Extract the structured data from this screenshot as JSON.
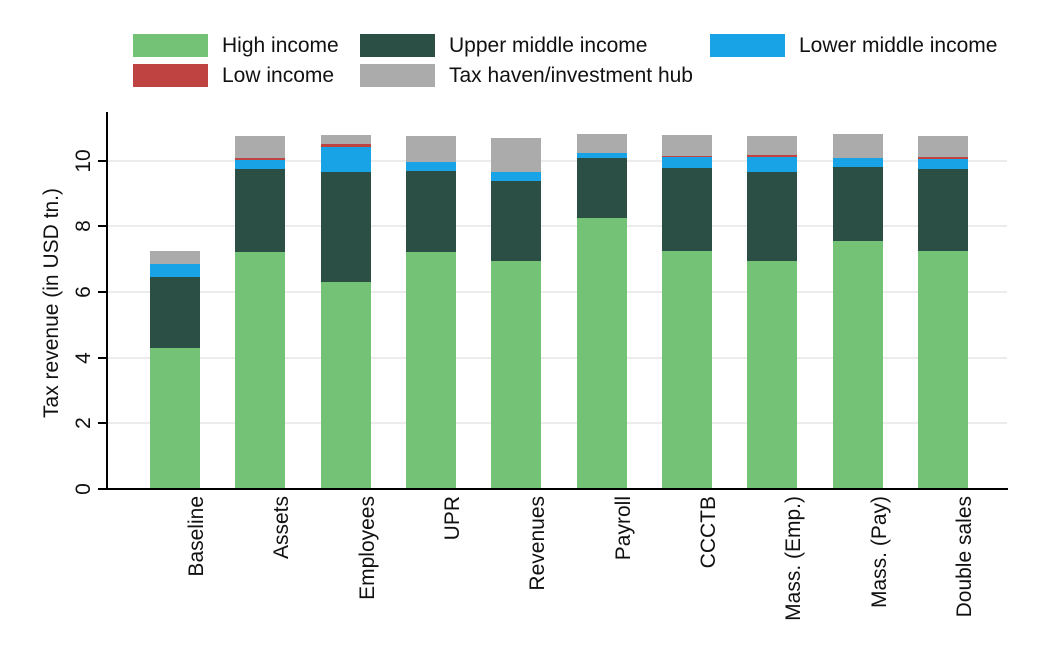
{
  "chart_data": {
    "type": "bar",
    "stacked": true,
    "title": "",
    "xlabel": "",
    "ylabel": "Tax revenue (in USD tn.)",
    "ylim": [
      0,
      11.3
    ],
    "yticks": [
      0,
      2,
      4,
      6,
      8,
      10
    ],
    "grid": "horizontal gridlines at 2,4,6,8,10",
    "legend_position": "top, two rows",
    "categories": [
      "Baseline",
      "Assets",
      "Employees",
      "UPR",
      "Revenues",
      "Payroll",
      "CCCTB",
      "Mass. (Emp.)",
      "Mass. (Pay)",
      "Double sales"
    ],
    "series": [
      {
        "name": "High income",
        "color": "#74C276",
        "values": [
          4.28,
          7.21,
          6.31,
          7.22,
          6.94,
          8.26,
          7.25,
          6.94,
          7.55,
          7.25
        ]
      },
      {
        "name": "Upper middle income",
        "color": "#2C4F45",
        "values": [
          2.18,
          2.52,
          3.33,
          2.46,
          2.44,
          1.83,
          2.51,
          2.72,
          2.25,
          2.48
        ]
      },
      {
        "name": "Lower middle income",
        "color": "#17A3E6",
        "values": [
          0.38,
          0.29,
          0.76,
          0.28,
          0.26,
          0.13,
          0.34,
          0.45,
          0.29,
          0.33
        ]
      },
      {
        "name": "Low income",
        "color": "#BE4341",
        "values": [
          0.0,
          0.07,
          0.09,
          0.0,
          0.0,
          0.0,
          0.05,
          0.06,
          0.0,
          0.06
        ]
      },
      {
        "name": "Tax haven/investment hub",
        "color": "#ABABAB",
        "values": [
          0.41,
          0.67,
          0.29,
          0.8,
          1.06,
          0.58,
          0.63,
          0.59,
          0.71,
          0.64
        ]
      }
    ],
    "totals": [
      7.25,
      10.76,
      10.78,
      10.76,
      10.7,
      10.8,
      10.78,
      10.76,
      10.8,
      10.76
    ]
  },
  "colors": {
    "axis": "#000000",
    "gridline": "#ececec",
    "background": "#ffffff"
  }
}
